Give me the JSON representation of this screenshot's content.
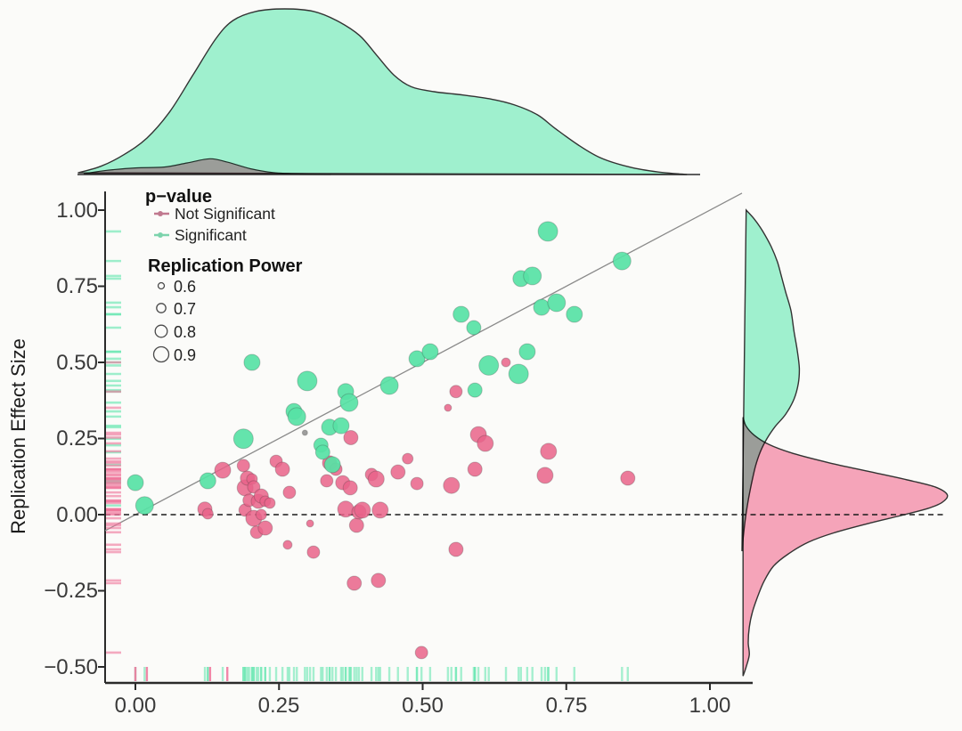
{
  "figure": {
    "y_axis_title": "Replication Effect Size",
    "x_tick_labels": [
      "0.00",
      "0.25",
      "0.50",
      "0.75",
      "1.00"
    ],
    "y_tick_labels": [
      "1.00",
      "0.75",
      "0.50",
      "0.25",
      "0.00",
      "−0.25",
      "−0.50"
    ],
    "legend": {
      "pvalue_title": "p−value",
      "not_significant_label": "Not Significant",
      "significant_label": "Significant",
      "power_title": "Replication Power",
      "power_labels": [
        "0.6",
        "0.7",
        "0.8",
        "0.9"
      ]
    },
    "colors": {
      "significant": "#57E2A5",
      "not_significant": "#E96389",
      "density_green": "#9FF0CE",
      "density_pink": "#F9A7BE",
      "rug_green": "#5FE6AE",
      "rug_pink": "#F0739A",
      "axis": "#2A2A2A",
      "diagonal": "#8A8A8A",
      "legend_marker_pink": "#C0798F",
      "legend_marker_green": "#7CD3AC",
      "background": "#FBFBF9"
    }
  },
  "chart_data": {
    "type": "scatter",
    "title": "",
    "xlabel": "",
    "ylabel": "Replication Effect Size",
    "xlim": [
      -0.055,
      1.06
    ],
    "ylim": [
      -0.55,
      1.06
    ],
    "x_tick_values": [
      0,
      0.25,
      0.5,
      0.75,
      1.0
    ],
    "y_tick_values": [
      1.0,
      0.75,
      0.5,
      0.25,
      0.0,
      -0.25,
      -0.5
    ],
    "grid": false,
    "legend_position": "top-left-inside",
    "reference_lines": {
      "diagonal": "y = x",
      "horizontal_dashed_at_y": 0
    },
    "power_legend_values": [
      0.6,
      0.7,
      0.8,
      0.9
    ],
    "power_legend_radii": [
      3.5,
      5.2,
      6.8,
      8.5
    ],
    "series": [
      {
        "name": "Significant",
        "color": "#57E2A5",
        "points": [
          {
            "x": 0.0,
            "y": 0.105,
            "p": 0.85
          },
          {
            "x": 0.016,
            "y": 0.03,
            "p": 0.9
          },
          {
            "x": 0.126,
            "y": 0.111,
            "p": 0.85
          },
          {
            "x": 0.188,
            "y": 0.249,
            "p": 0.95
          },
          {
            "x": 0.203,
            "y": 0.5,
            "p": 0.85
          },
          {
            "x": 0.276,
            "y": 0.339,
            "p": 0.85
          },
          {
            "x": 0.281,
            "y": 0.322,
            "p": 0.9
          },
          {
            "x": 0.299,
            "y": 0.439,
            "p": 0.95
          },
          {
            "x": 0.323,
            "y": 0.228,
            "p": 0.8
          },
          {
            "x": 0.326,
            "y": 0.205,
            "p": 0.8
          },
          {
            "x": 0.338,
            "y": 0.287,
            "p": 0.85
          },
          {
            "x": 0.343,
            "y": 0.164,
            "p": 0.85
          },
          {
            "x": 0.358,
            "y": 0.292,
            "p": 0.85
          },
          {
            "x": 0.366,
            "y": 0.404,
            "p": 0.85
          },
          {
            "x": 0.372,
            "y": 0.368,
            "p": 0.9
          },
          {
            "x": 0.442,
            "y": 0.424,
            "p": 0.9
          },
          {
            "x": 0.49,
            "y": 0.512,
            "p": 0.85
          },
          {
            "x": 0.513,
            "y": 0.535,
            "p": 0.85
          },
          {
            "x": 0.567,
            "y": 0.658,
            "p": 0.85
          },
          {
            "x": 0.589,
            "y": 0.614,
            "p": 0.8
          },
          {
            "x": 0.591,
            "y": 0.409,
            "p": 0.8
          },
          {
            "x": 0.615,
            "y": 0.49,
            "p": 0.95
          },
          {
            "x": 0.667,
            "y": 0.462,
            "p": 0.95
          },
          {
            "x": 0.671,
            "y": 0.775,
            "p": 0.85
          },
          {
            "x": 0.682,
            "y": 0.535,
            "p": 0.85
          },
          {
            "x": 0.691,
            "y": 0.784,
            "p": 0.9
          },
          {
            "x": 0.707,
            "y": 0.681,
            "p": 0.85
          },
          {
            "x": 0.718,
            "y": 0.93,
            "p": 0.95
          },
          {
            "x": 0.733,
            "y": 0.696,
            "p": 0.9
          },
          {
            "x": 0.764,
            "y": 0.658,
            "p": 0.85
          },
          {
            "x": 0.847,
            "y": 0.833,
            "p": 0.9
          }
        ]
      },
      {
        "name": "Not Significant",
        "color": "#E96389",
        "points": [
          {
            "x": 0.121,
            "y": 0.018,
            "p": 0.8
          },
          {
            "x": 0.126,
            "y": 0.003,
            "p": 0.7
          },
          {
            "x": 0.152,
            "y": 0.146,
            "p": 0.85
          },
          {
            "x": 0.188,
            "y": 0.161,
            "p": 0.75
          },
          {
            "x": 0.191,
            "y": 0.088,
            "p": 0.85
          },
          {
            "x": 0.191,
            "y": 0.015,
            "p": 0.75
          },
          {
            "x": 0.195,
            "y": 0.12,
            "p": 0.8
          },
          {
            "x": 0.198,
            "y": 0.047,
            "p": 0.75
          },
          {
            "x": 0.203,
            "y": 0.117,
            "p": 0.7
          },
          {
            "x": 0.206,
            "y": 0.091,
            "p": 0.75
          },
          {
            "x": 0.206,
            "y": -0.012,
            "p": 0.85
          },
          {
            "x": 0.211,
            "y": -0.058,
            "p": 0.75
          },
          {
            "x": 0.214,
            "y": 0.044,
            "p": 0.8
          },
          {
            "x": 0.219,
            "y": 0.061,
            "p": 0.8
          },
          {
            "x": 0.219,
            "y": 0.0,
            "p": 0.7
          },
          {
            "x": 0.226,
            "y": 0.044,
            "p": 0.7
          },
          {
            "x": 0.226,
            "y": -0.044,
            "p": 0.8
          },
          {
            "x": 0.234,
            "y": 0.038,
            "p": 0.7
          },
          {
            "x": 0.245,
            "y": 0.175,
            "p": 0.75
          },
          {
            "x": 0.256,
            "y": 0.149,
            "p": 0.8
          },
          {
            "x": 0.265,
            "y": -0.099,
            "p": 0.65
          },
          {
            "x": 0.268,
            "y": 0.073,
            "p": 0.75
          },
          {
            "x": 0.304,
            "y": -0.029,
            "p": 0.6
          },
          {
            "x": 0.31,
            "y": -0.123,
            "p": 0.75
          },
          {
            "x": 0.333,
            "y": 0.111,
            "p": 0.75
          },
          {
            "x": 0.338,
            "y": 0.17,
            "p": 0.8
          },
          {
            "x": 0.349,
            "y": 0.149,
            "p": 0.75
          },
          {
            "x": 0.361,
            "y": 0.105,
            "p": 0.8
          },
          {
            "x": 0.366,
            "y": 0.018,
            "p": 0.85
          },
          {
            "x": 0.374,
            "y": 0.088,
            "p": 0.8
          },
          {
            "x": 0.375,
            "y": 0.253,
            "p": 0.8
          },
          {
            "x": 0.381,
            "y": -0.225,
            "p": 0.8
          },
          {
            "x": 0.385,
            "y": -0.035,
            "p": 0.8
          },
          {
            "x": 0.389,
            "y": 0.009,
            "p": 0.8
          },
          {
            "x": 0.395,
            "y": 0.015,
            "p": 0.85
          },
          {
            "x": 0.411,
            "y": 0.132,
            "p": 0.75
          },
          {
            "x": 0.419,
            "y": 0.117,
            "p": 0.85
          },
          {
            "x": 0.423,
            "y": -0.216,
            "p": 0.8
          },
          {
            "x": 0.426,
            "y": 0.015,
            "p": 0.85
          },
          {
            "x": 0.457,
            "y": 0.14,
            "p": 0.8
          },
          {
            "x": 0.474,
            "y": 0.184,
            "p": 0.7
          },
          {
            "x": 0.49,
            "y": 0.102,
            "p": 0.75
          },
          {
            "x": 0.498,
            "y": -0.453,
            "p": 0.75
          },
          {
            "x": 0.544,
            "y": 0.351,
            "p": 0.6
          },
          {
            "x": 0.55,
            "y": 0.096,
            "p": 0.85
          },
          {
            "x": 0.558,
            "y": 0.404,
            "p": 0.75
          },
          {
            "x": 0.558,
            "y": -0.114,
            "p": 0.8
          },
          {
            "x": 0.591,
            "y": 0.149,
            "p": 0.8
          },
          {
            "x": 0.597,
            "y": 0.263,
            "p": 0.85
          },
          {
            "x": 0.609,
            "y": 0.234,
            "p": 0.85
          },
          {
            "x": 0.645,
            "y": 0.5,
            "p": 0.65
          },
          {
            "x": 0.713,
            "y": 0.129,
            "p": 0.85
          },
          {
            "x": 0.719,
            "y": 0.208,
            "p": 0.85
          },
          {
            "x": 0.857,
            "y": 0.12,
            "p": 0.8
          }
        ]
      },
      {
        "name": "Unclassified small point",
        "color": "#8C8C8C",
        "points": [
          {
            "x": 0.295,
            "y": 0.269,
            "p": 0.55
          }
        ]
      }
    ],
    "bottom_rug_pink_x": [
      0.0,
      0.02,
      0.13,
      0.16
    ],
    "densities": {
      "top_significant": [
        [
          -0.1,
          0.01
        ],
        [
          -0.06,
          0.05
        ],
        [
          -0.02,
          0.12
        ],
        [
          0.02,
          0.22
        ],
        [
          0.06,
          0.38
        ],
        [
          0.1,
          0.6
        ],
        [
          0.14,
          0.82
        ],
        [
          0.17,
          0.93
        ],
        [
          0.21,
          0.985
        ],
        [
          0.26,
          1.0
        ],
        [
          0.31,
          0.985
        ],
        [
          0.35,
          0.93
        ],
        [
          0.39,
          0.84
        ],
        [
          0.42,
          0.72
        ],
        [
          0.45,
          0.6
        ],
        [
          0.48,
          0.53
        ],
        [
          0.52,
          0.5
        ],
        [
          0.57,
          0.48
        ],
        [
          0.62,
          0.455
        ],
        [
          0.66,
          0.42
        ],
        [
          0.7,
          0.36
        ],
        [
          0.73,
          0.28
        ],
        [
          0.77,
          0.18
        ],
        [
          0.81,
          0.1
        ],
        [
          0.86,
          0.045
        ],
        [
          0.91,
          0.015
        ],
        [
          0.96,
          0.0
        ]
      ],
      "top_not_significant": [
        [
          -0.09,
          0.005
        ],
        [
          -0.05,
          0.025
        ],
        [
          0.0,
          0.04
        ],
        [
          0.05,
          0.045
        ],
        [
          0.09,
          0.07
        ],
        [
          0.13,
          0.095
        ],
        [
          0.16,
          0.075
        ],
        [
          0.2,
          0.035
        ],
        [
          0.24,
          0.012
        ],
        [
          0.29,
          0.003
        ],
        [
          0.34,
          0.0
        ]
      ],
      "right_significant": [
        [
          1.0,
          0.02
        ],
        [
          0.97,
          0.06
        ],
        [
          0.93,
          0.1
        ],
        [
          0.88,
          0.14
        ],
        [
          0.83,
          0.17
        ],
        [
          0.78,
          0.19
        ],
        [
          0.73,
          0.21
        ],
        [
          0.67,
          0.235
        ],
        [
          0.6,
          0.25
        ],
        [
          0.54,
          0.265
        ],
        [
          0.48,
          0.275
        ],
        [
          0.43,
          0.27
        ],
        [
          0.38,
          0.25
        ],
        [
          0.33,
          0.21
        ],
        [
          0.29,
          0.16
        ],
        [
          0.25,
          0.12
        ],
        [
          0.21,
          0.09
        ],
        [
          0.16,
          0.065
        ],
        [
          0.1,
          0.045
        ],
        [
          0.04,
          0.028
        ],
        [
          -0.02,
          0.015
        ],
        [
          -0.08,
          0.005
        ],
        [
          -0.12,
          0.0
        ]
      ],
      "right_not_significant": [
        [
          0.32,
          0.005
        ],
        [
          0.29,
          0.02
        ],
        [
          0.26,
          0.06
        ],
        [
          0.23,
          0.13
        ],
        [
          0.2,
          0.25
        ],
        [
          0.17,
          0.42
        ],
        [
          0.14,
          0.62
        ],
        [
          0.11,
          0.82
        ],
        [
          0.09,
          0.93
        ],
        [
          0.065,
          0.985
        ],
        [
          0.04,
          0.96
        ],
        [
          0.02,
          0.89
        ],
        [
          0.0,
          0.78
        ],
        [
          -0.03,
          0.6
        ],
        [
          -0.06,
          0.44
        ],
        [
          -0.09,
          0.32
        ],
        [
          -0.13,
          0.22
        ],
        [
          -0.17,
          0.15
        ],
        [
          -0.22,
          0.105
        ],
        [
          -0.27,
          0.075
        ],
        [
          -0.32,
          0.05
        ],
        [
          -0.37,
          0.035
        ],
        [
          -0.42,
          0.03
        ],
        [
          -0.46,
          0.035
        ],
        [
          -0.5,
          0.02
        ],
        [
          -0.53,
          0.005
        ]
      ]
    }
  }
}
